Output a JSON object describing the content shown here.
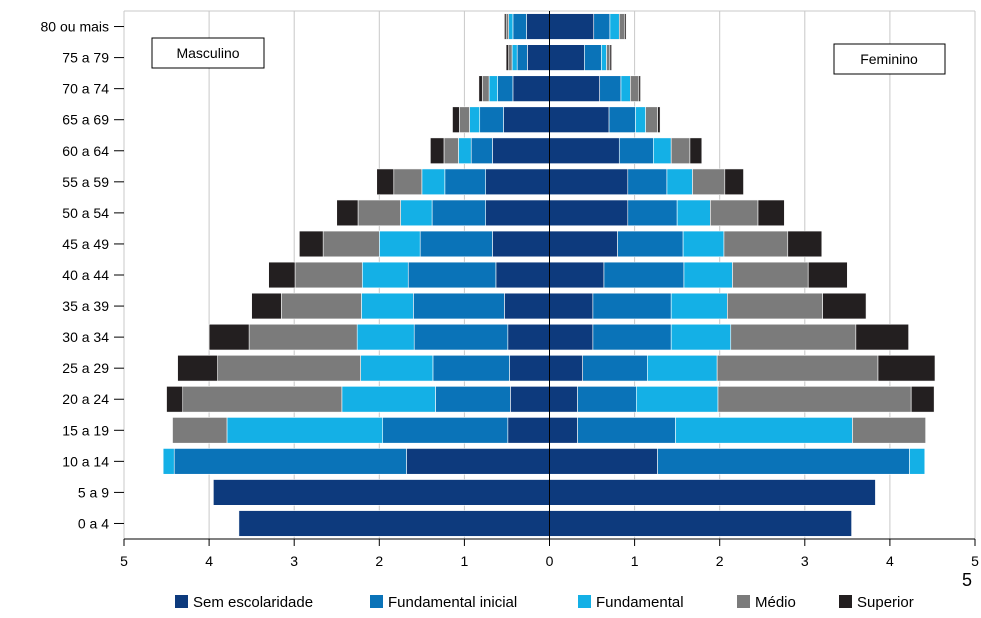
{
  "chart_data": {
    "type": "bar",
    "orientation": "horizontal",
    "layout": "population-pyramid",
    "categories": [
      "0 a 4",
      "5 a 9",
      "10 a 14",
      "15 a 19",
      "20 a 24",
      "25 a 29",
      "30 a 34",
      "35 a 39",
      "40 a 44",
      "45 a 49",
      "50 a 54",
      "55 a 59",
      "60 a 64",
      "65 a 69",
      "70 a 74",
      "75 a 79",
      "80 ou mais"
    ],
    "sides": [
      {
        "label": "Masculino",
        "direction": "left",
        "series": [
          {
            "name": "Sem escolaridade",
            "color": "#0d3a7d",
            "values": [
              3.65,
              3.95,
              1.68,
              0.49,
              0.46,
              0.47,
              0.49,
              0.53,
              0.63,
              0.67,
              0.75,
              0.75,
              0.67,
              0.54,
              0.43,
              0.26,
              0.27
            ]
          },
          {
            "name": "Fundamental inicial",
            "color": "#0a73b8",
            "values": [
              0,
              0,
              2.73,
              1.47,
              0.88,
              0.9,
              1.1,
              1.07,
              1.03,
              0.85,
              0.63,
              0.48,
              0.25,
              0.28,
              0.18,
              0.12,
              0.16
            ]
          },
          {
            "name": "Fundamental",
            "color": "#14b0e6",
            "values": [
              0,
              0,
              0.13,
              1.83,
              1.1,
              0.85,
              0.67,
              0.61,
              0.54,
              0.48,
              0.37,
              0.27,
              0.15,
              0.12,
              0.1,
              0.06,
              0.05
            ]
          },
          {
            "name": "Médio",
            "color": "#7b7b7b",
            "values": [
              0,
              0,
              0,
              0.64,
              1.87,
              1.68,
              1.27,
              0.94,
              0.79,
              0.66,
              0.5,
              0.33,
              0.17,
              0.12,
              0.08,
              0.04,
              0.03
            ]
          },
          {
            "name": "Superior",
            "color": "#231f20",
            "values": [
              0,
              0,
              0,
              0,
              0.19,
              0.47,
              0.47,
              0.35,
              0.31,
              0.28,
              0.25,
              0.2,
              0.16,
              0.08,
              0.04,
              0.03,
              0.02
            ]
          }
        ]
      },
      {
        "label": "Feminino",
        "direction": "right",
        "series": [
          {
            "name": "Sem escolaridade",
            "color": "#0d3a7d",
            "values": [
              3.55,
              3.83,
              1.27,
              0.33,
              0.33,
              0.39,
              0.51,
              0.51,
              0.64,
              0.8,
              0.92,
              0.92,
              0.82,
              0.7,
              0.59,
              0.41,
              0.52
            ]
          },
          {
            "name": "Fundamental inicial",
            "color": "#0a73b8",
            "values": [
              0,
              0,
              2.96,
              1.15,
              0.69,
              0.76,
              0.92,
              0.92,
              0.94,
              0.77,
              0.58,
              0.46,
              0.4,
              0.31,
              0.25,
              0.2,
              0.19
            ]
          },
          {
            "name": "Fundamental",
            "color": "#14b0e6",
            "values": [
              0,
              0,
              0.18,
              2.08,
              0.96,
              0.82,
              0.7,
              0.66,
              0.57,
              0.48,
              0.39,
              0.3,
              0.21,
              0.12,
              0.11,
              0.06,
              0.11
            ]
          },
          {
            "name": "Médio",
            "color": "#7b7b7b",
            "values": [
              0,
              0,
              0,
              0.86,
              2.27,
              1.89,
              1.47,
              1.12,
              0.89,
              0.75,
              0.56,
              0.38,
              0.22,
              0.14,
              0.1,
              0.04,
              0.06
            ]
          },
          {
            "name": "Superior",
            "color": "#231f20",
            "values": [
              0,
              0,
              0,
              0,
              0.27,
              0.67,
              0.62,
              0.51,
              0.46,
              0.4,
              0.31,
              0.22,
              0.14,
              0.03,
              0.02,
              0.02,
              0.02
            ]
          }
        ]
      }
    ],
    "xlim": [
      -5,
      5
    ],
    "x_ticks": [
      -5,
      -4,
      -3,
      -2,
      -1,
      0,
      1,
      2,
      3,
      4,
      5
    ],
    "x_tick_labels": [
      "5",
      "4",
      "3",
      "2",
      "1",
      "0",
      "1",
      "2",
      "3",
      "4",
      "5"
    ],
    "extra_label": "5",
    "grid": true,
    "legend_position": "bottom",
    "legend": [
      "Sem escolaridade",
      "Fundamental inicial",
      "Fundamental",
      "Médio",
      "Superior"
    ],
    "colors": [
      "#0d3a7d",
      "#0a73b8",
      "#14b0e6",
      "#7b7b7b",
      "#231f20"
    ]
  }
}
